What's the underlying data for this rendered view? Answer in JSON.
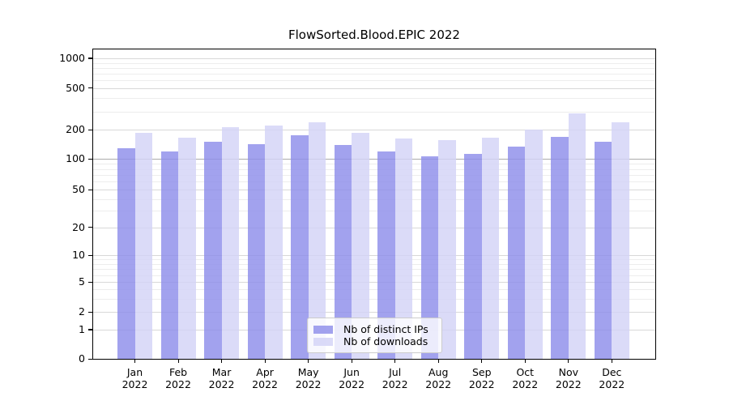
{
  "chart_data": {
    "type": "bar",
    "title": "FlowSorted.Blood.EPIC 2022",
    "year": "2022",
    "categories": [
      "Jan",
      "Feb",
      "Mar",
      "Apr",
      "May",
      "Jun",
      "Jul",
      "Aug",
      "Sep",
      "Oct",
      "Nov",
      "Dec"
    ],
    "series": [
      {
        "name": "Nb of distinct IPs",
        "color": "#8d8dea",
        "values": [
          130,
          119,
          152,
          142,
          176,
          139,
          120,
          107,
          112,
          135,
          171,
          151
        ]
      },
      {
        "name": "Nb of downloads",
        "color": "#d3d3f6",
        "values": [
          186,
          168,
          214,
          221,
          238,
          188,
          164,
          156,
          166,
          203,
          288,
          237
        ]
      }
    ],
    "y_ticks": [
      0,
      1,
      2,
      5,
      10,
      20,
      50,
      100,
      200,
      500,
      1000
    ],
    "y_minor_ticks": [
      3,
      4,
      6,
      7,
      8,
      9,
      30,
      40,
      60,
      70,
      80,
      90,
      300,
      400,
      600,
      700,
      800,
      900
    ],
    "y_scale": "symlog",
    "ylim": [
      0,
      1230
    ],
    "grid": true,
    "legend_position": "lower center",
    "colors": {
      "grid_major": "#d8d8d8",
      "grid_minor": "#ededed",
      "grid_emphasis_100": "#ababab",
      "axis": "#000000",
      "background": "#ffffff"
    }
  }
}
